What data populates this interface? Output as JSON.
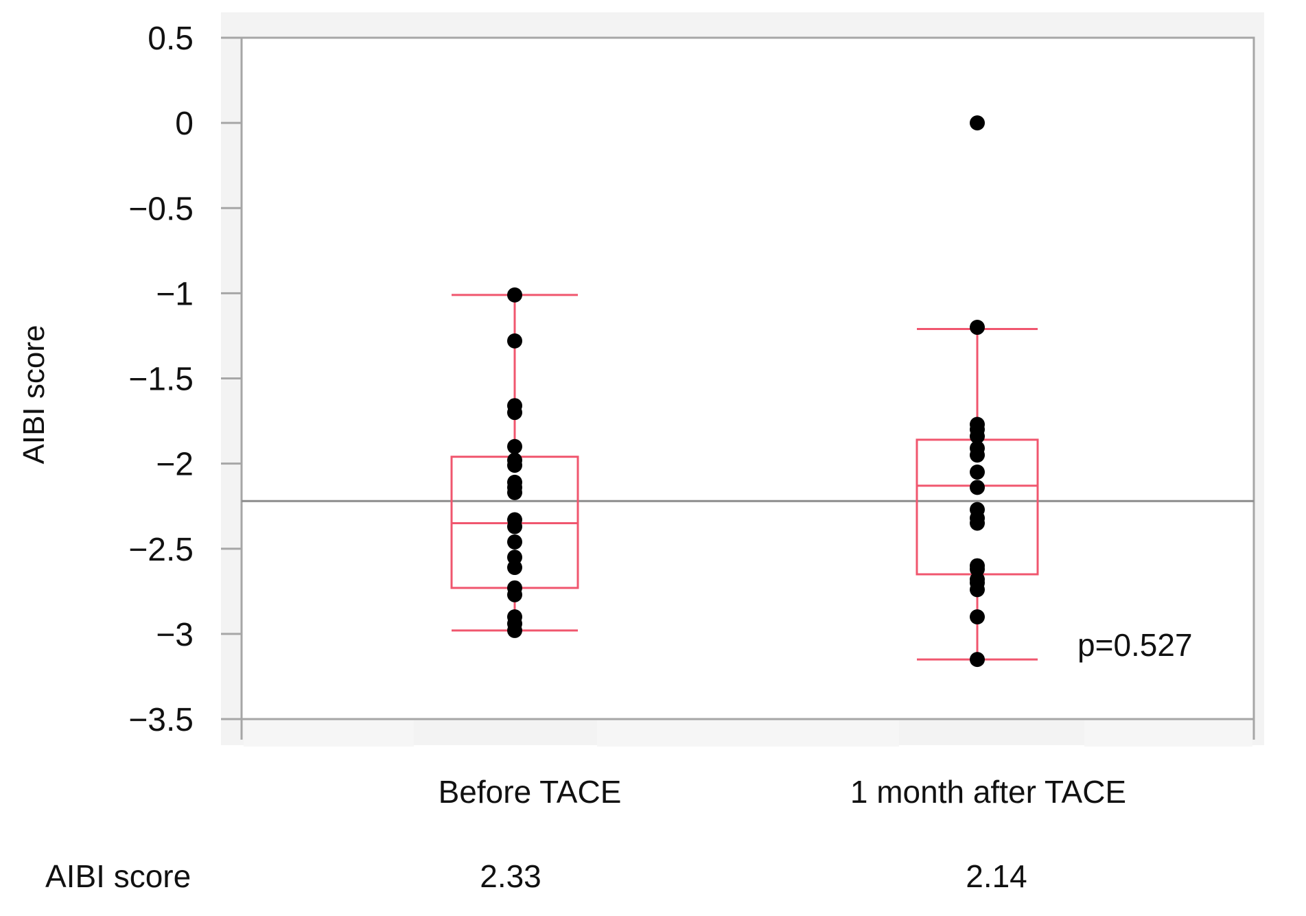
{
  "chart_data": {
    "type": "box",
    "ylabel": "AIBI score",
    "ylim": [
      -3.5,
      0.5
    ],
    "yticks": [
      "0.5",
      "0",
      "−0.5",
      "−1",
      "−1.5",
      "−2",
      "−2.5",
      "−3",
      "−3.5"
    ],
    "ytick_values": [
      0.5,
      0,
      -0.5,
      -1,
      -1.5,
      -2,
      -2.5,
      -3,
      -3.5
    ],
    "grand_mean": -2.22,
    "annotation": "p=0.527",
    "summary_label": "AIBI score",
    "categories": [
      "Before TACE",
      "1 month after TACE"
    ],
    "groups": [
      {
        "name": "Before TACE",
        "summary_value": "2.33",
        "whisker_low": -2.98,
        "q1": -2.73,
        "median": -2.35,
        "q3": -1.96,
        "whisker_high": -1.01,
        "points": [
          -1.01,
          -1.28,
          -1.66,
          -1.7,
          -1.9,
          -1.98,
          -2.01,
          -2.11,
          -2.14,
          -2.17,
          -2.33,
          -2.37,
          -2.46,
          -2.55,
          -2.61,
          -2.73,
          -2.77,
          -2.9,
          -2.94,
          -2.98
        ]
      },
      {
        "name": "1 month after TACE",
        "summary_value": "2.14",
        "whisker_low": -3.15,
        "q1": -2.65,
        "median": -2.13,
        "q3": -1.86,
        "whisker_high": -1.21,
        "points": [
          0.0,
          -1.2,
          -1.77,
          -1.8,
          -1.84,
          -1.91,
          -1.95,
          -2.05,
          -2.14,
          -2.27,
          -2.32,
          -2.35,
          -2.6,
          -2.62,
          -2.68,
          -2.7,
          -2.74,
          -2.9,
          -3.15
        ]
      }
    ],
    "colors": {
      "box": "#f0566e",
      "points": "#000000",
      "axis": "#a6a6a6",
      "mean_line": "#8c8c8c",
      "band": "#f3f3f3"
    }
  }
}
